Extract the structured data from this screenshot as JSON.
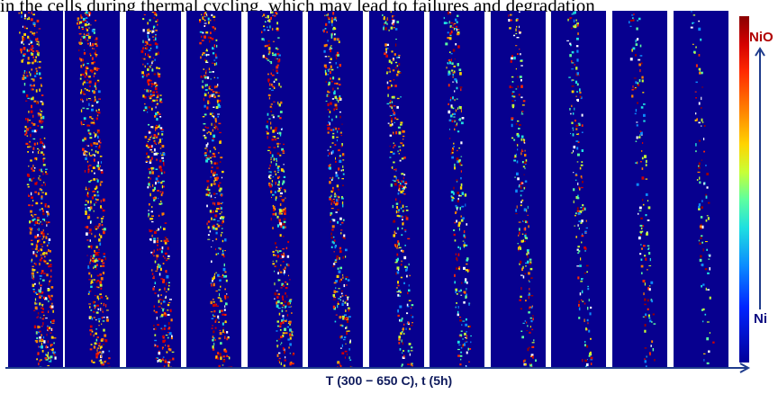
{
  "caption_fragment": "in the cells during thermal cycling, which may lead to failures and degradation",
  "figure": {
    "panel_count": 12,
    "panel_background": "#07008f",
    "density_trend": "decreasing left to right",
    "colorbar": {
      "top_label": "NiO",
      "bottom_label": "Ni",
      "top_color": "#b00000",
      "bottom_color": "#0a0a80"
    },
    "x_axis_label": "T (300 − 650 C), t (5h)",
    "arrow_color": "#1f3c8c"
  }
}
